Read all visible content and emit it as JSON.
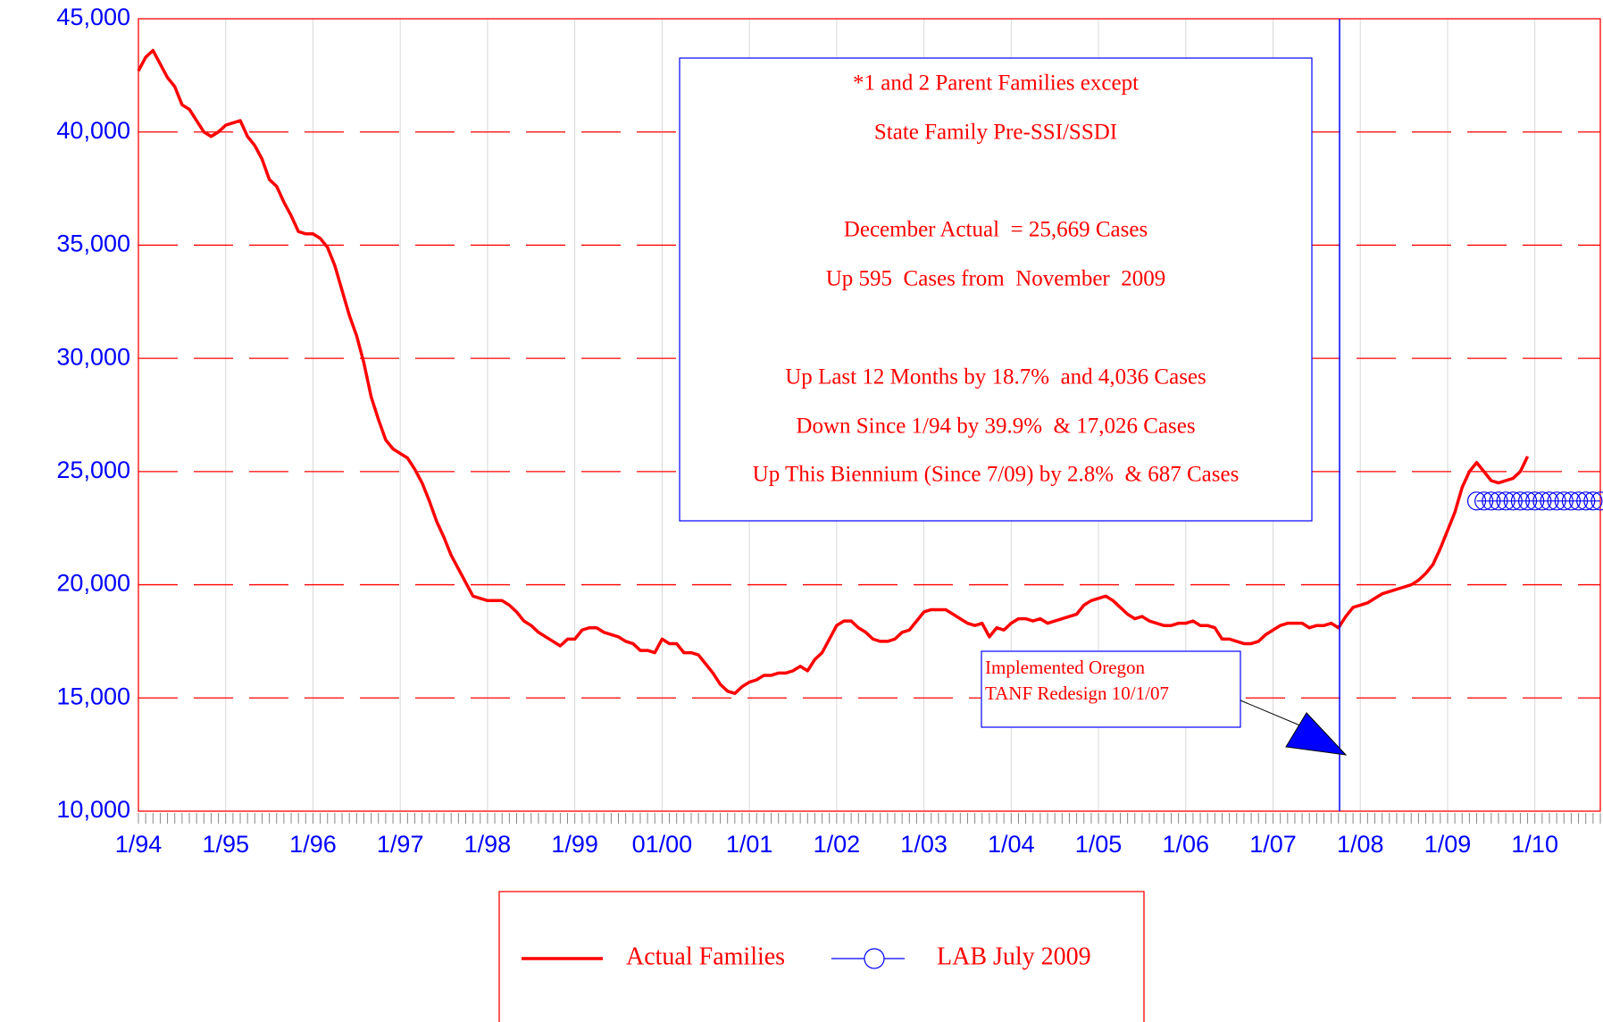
{
  "chart_data": {
    "type": "line",
    "annotations": [
      "*1 and 2 Parent Families except",
      "State Family Pre-SSI/SSDI",
      "December Actual  = 25,669 Cases",
      "Up 595  Cases from  November  2009",
      "Up Last 12 Months by 18.7%  and 4,036 Cases",
      "Down Since 1/94 by 39.9%  & 17,026 Cases",
      "Up This Biennium (Since 7/09) by 2.8%  & 687 Cases"
    ],
    "callout": [
      "Implemented Oregon",
      "TANF Redesign 10/1/07"
    ],
    "categories": [
      "1/94",
      null,
      null,
      null,
      null,
      null,
      null,
      null,
      null,
      null,
      null,
      null,
      "1/95",
      null,
      null,
      null,
      null,
      null,
      null,
      null,
      null,
      null,
      null,
      null,
      "1/96",
      null,
      null,
      null,
      null,
      null,
      null,
      null,
      null,
      null,
      null,
      null,
      "1/97",
      null,
      null,
      null,
      null,
      null,
      null,
      null,
      null,
      null,
      null,
      null,
      "1/98",
      null,
      null,
      null,
      null,
      null,
      null,
      null,
      null,
      null,
      null,
      null,
      "1/99",
      null,
      null,
      null,
      null,
      null,
      null,
      null,
      null,
      null,
      null,
      null,
      "01/00",
      null,
      null,
      null,
      null,
      null,
      null,
      null,
      null,
      null,
      null,
      null,
      "1/01",
      null,
      null,
      null,
      null,
      null,
      null,
      null,
      null,
      null,
      null,
      null,
      "1/02",
      null,
      null,
      null,
      null,
      null,
      null,
      null,
      null,
      null,
      null,
      null,
      "1/03",
      null,
      null,
      null,
      null,
      null,
      null,
      null,
      null,
      null,
      null,
      null,
      "1/04",
      null,
      null,
      null,
      null,
      null,
      null,
      null,
      null,
      null,
      null,
      null,
      "1/05",
      null,
      null,
      null,
      null,
      null,
      null,
      null,
      null,
      null,
      null,
      null,
      "1/06",
      null,
      null,
      null,
      null,
      null,
      null,
      null,
      null,
      null,
      null,
      null,
      "1/07",
      null,
      null,
      null,
      null,
      null,
      null,
      null,
      null,
      null,
      null,
      null,
      "1/08",
      null,
      null,
      null,
      null,
      null,
      null,
      null,
      null,
      null,
      null,
      null,
      "1/09",
      null,
      null,
      null,
      null,
      null,
      null,
      null,
      null,
      null,
      null,
      null,
      "1/10",
      null,
      null,
      null,
      null,
      null,
      null,
      null,
      null,
      null
    ],
    "series": [
      {
        "name": "Actual Families",
        "color": "#ff0000",
        "values": [
          42700,
          43300,
          43600,
          43000,
          42400,
          42000,
          41200,
          41000,
          40500,
          40000,
          39800,
          40000,
          40300,
          40400,
          40500,
          39800,
          39400,
          38800,
          37900,
          37600,
          36900,
          36300,
          35600,
          35500,
          35500,
          35300,
          34900,
          34100,
          33000,
          31900,
          31000,
          29800,
          28300,
          27300,
          26400,
          26000,
          25800,
          25600,
          25100,
          24500,
          23700,
          22800,
          22100,
          21300,
          20700,
          20100,
          19500,
          19400,
          19300,
          19300,
          19300,
          19100,
          18800,
          18400,
          18200,
          17900,
          17700,
          17500,
          17300,
          17600,
          17600,
          18000,
          18100,
          18100,
          17900,
          17800,
          17700,
          17500,
          17400,
          17100,
          17100,
          17000,
          17600,
          17400,
          17400,
          17000,
          17000,
          16900,
          16500,
          16100,
          15600,
          15300,
          15200,
          15500,
          15700,
          15800,
          16000,
          16000,
          16100,
          16100,
          16200,
          16400,
          16200,
          16700,
          17000,
          17600,
          18200,
          18400,
          18400,
          18100,
          17900,
          17600,
          17500,
          17500,
          17600,
          17900,
          18000,
          18400,
          18800,
          18900,
          18900,
          18900,
          18700,
          18500,
          18300,
          18200,
          18300,
          17700,
          18100,
          18000,
          18300,
          18500,
          18500,
          18400,
          18500,
          18300,
          18400,
          18500,
          18600,
          18700,
          19100,
          19300,
          19400,
          19500,
          19300,
          19000,
          18700,
          18500,
          18600,
          18400,
          18300,
          18200,
          18200,
          18300,
          18300,
          18400,
          18200,
          18200,
          18100,
          17600,
          17600,
          17500,
          17400,
          17400,
          17500,
          17800,
          18000,
          18200,
          18300,
          18300,
          18300,
          18100,
          18200,
          18200,
          18300,
          18100,
          18600,
          19000,
          19100,
          19200,
          19400,
          19600,
          19700,
          19800,
          19900,
          20000,
          20200,
          20500,
          20900,
          21600,
          22400,
          23200,
          24300,
          25000,
          25400,
          25000,
          24600,
          24500,
          24600,
          24700,
          25000,
          25669,
          null,
          null,
          null,
          null,
          null,
          null,
          null,
          null,
          null,
          null
        ]
      },
      {
        "name": "LAB July 2009",
        "color": "#0000ff",
        "marker": "circle",
        "values": [
          null,
          null,
          null,
          null,
          null,
          null,
          null,
          null,
          null,
          null,
          null,
          null,
          null,
          null,
          null,
          null,
          null,
          null,
          null,
          null,
          null,
          null,
          null,
          null,
          null,
          null,
          null,
          null,
          null,
          null,
          null,
          null,
          null,
          null,
          null,
          null,
          null,
          null,
          null,
          null,
          null,
          null,
          null,
          null,
          null,
          null,
          null,
          null,
          null,
          null,
          null,
          null,
          null,
          null,
          null,
          null,
          null,
          null,
          null,
          null,
          null,
          null,
          null,
          null,
          null,
          null,
          null,
          null,
          null,
          null,
          null,
          null,
          null,
          null,
          null,
          null,
          null,
          null,
          null,
          null,
          null,
          null,
          null,
          null,
          null,
          null,
          null,
          null,
          null,
          null,
          null,
          null,
          null,
          null,
          null,
          null,
          null,
          null,
          null,
          null,
          null,
          null,
          null,
          null,
          null,
          null,
          null,
          null,
          null,
          null,
          null,
          null,
          null,
          null,
          null,
          null,
          null,
          null,
          null,
          null,
          null,
          null,
          null,
          null,
          null,
          null,
          null,
          null,
          null,
          null,
          null,
          null,
          null,
          null,
          null,
          null,
          null,
          null,
          null,
          null,
          null,
          null,
          null,
          null,
          null,
          null,
          null,
          null,
          null,
          null,
          null,
          null,
          null,
          null,
          null,
          null,
          null,
          null,
          null,
          null,
          null,
          null,
          null,
          null,
          null,
          null,
          null,
          null,
          null,
          null,
          null,
          null,
          null,
          null,
          null,
          null,
          null,
          null,
          null,
          null,
          null,
          null,
          null,
          null,
          23700,
          23700,
          23700,
          23700,
          23700,
          23700,
          23700,
          23700,
          23700,
          23700,
          23700,
          23700,
          23700,
          23700,
          23700,
          23700,
          23700,
          23700
        ]
      }
    ],
    "ylim": [
      10000,
      45000
    ],
    "yticks": [
      {
        "value": 10000,
        "label": "10,000"
      },
      {
        "value": 15000,
        "label": "15,000"
      },
      {
        "value": 20000,
        "label": "20,000"
      },
      {
        "value": 25000,
        "label": "25,000"
      },
      {
        "value": 30000,
        "label": "30,000"
      },
      {
        "value": 35000,
        "label": "35,000"
      },
      {
        "value": 40000,
        "label": "40,000"
      },
      {
        "value": 45000,
        "label": "45,000"
      }
    ],
    "grid": true,
    "grid_color": "#ff0000",
    "axis_label_color": "#0000ff",
    "legend": "bottom"
  }
}
